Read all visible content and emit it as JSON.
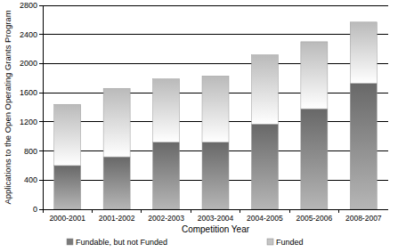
{
  "chart_data": {
    "type": "bar",
    "stacked": true,
    "x_label": "Competition Year",
    "y_label": "Applications to the Open Operating Grants Program",
    "categories": [
      "2000-2001",
      "2001-2002",
      "2002-2003",
      "2003-2004",
      "2004-2005",
      "2005-2006",
      "2008-2007"
    ],
    "series": [
      {
        "name": "Fundable, but not Funded",
        "color": "#7a7a7a",
        "values": [
          600,
          720,
          920,
          920,
          1170,
          1380,
          1730
        ]
      },
      {
        "name": "Funded",
        "color": "#c4c4c4",
        "values": [
          840,
          940,
          870,
          910,
          950,
          920,
          840
        ]
      }
    ],
    "ylim": [
      0,
      2800
    ],
    "yticks": [
      0,
      400,
      800,
      1200,
      1600,
      2000,
      2400,
      2800
    ],
    "grid": true,
    "legend": "bottom"
  }
}
